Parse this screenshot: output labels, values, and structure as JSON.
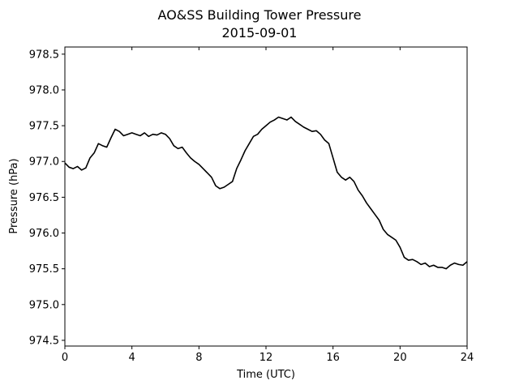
{
  "chart_data": {
    "type": "line",
    "title": "AO&SS Building Tower Pressure",
    "subtitle": "2015-09-01",
    "xlabel": "Time (UTC)",
    "ylabel": "Pressure (hPa)",
    "xlim": [
      0,
      24
    ],
    "ylim": [
      974.42,
      978.6
    ],
    "xticks": [
      0,
      4,
      8,
      12,
      16,
      20,
      24
    ],
    "yticks": [
      974.5,
      975.0,
      975.5,
      976.0,
      976.5,
      977.0,
      977.5,
      978.0,
      978.5
    ],
    "grid": false,
    "series": [
      {
        "color": "#000000",
        "x": [
          0,
          0.25,
          0.5,
          0.75,
          1.0,
          1.25,
          1.5,
          1.75,
          2.0,
          2.25,
          2.5,
          2.75,
          3.0,
          3.25,
          3.5,
          3.75,
          4.0,
          4.25,
          4.5,
          4.75,
          5.0,
          5.25,
          5.5,
          5.75,
          6.0,
          6.25,
          6.5,
          6.75,
          7.0,
          7.25,
          7.5,
          7.75,
          8.0,
          8.25,
          8.5,
          8.75,
          9.0,
          9.25,
          9.5,
          9.75,
          10.0,
          10.25,
          10.5,
          10.75,
          11.0,
          11.25,
          11.5,
          11.75,
          12.0,
          12.25,
          12.5,
          12.75,
          13.0,
          13.25,
          13.5,
          13.75,
          14.0,
          14.25,
          14.5,
          14.75,
          15.0,
          15.25,
          15.5,
          15.75,
          16.0,
          16.25,
          16.5,
          16.75,
          17.0,
          17.25,
          17.5,
          17.75,
          18.0,
          18.25,
          18.5,
          18.75,
          19.0,
          19.25,
          19.5,
          19.75,
          20.0,
          20.25,
          20.5,
          20.75,
          21.0,
          21.25,
          21.5,
          21.75,
          22.0,
          22.25,
          22.5,
          22.75,
          23.0,
          23.25,
          23.5,
          23.75,
          24.0
        ],
        "y": [
          976.98,
          976.92,
          976.9,
          976.93,
          976.88,
          976.91,
          977.05,
          977.12,
          977.25,
          977.22,
          977.2,
          977.33,
          977.45,
          977.42,
          977.36,
          977.38,
          977.4,
          977.38,
          977.36,
          977.4,
          977.35,
          977.38,
          977.37,
          977.4,
          977.38,
          977.32,
          977.22,
          977.18,
          977.2,
          977.12,
          977.05,
          977.0,
          976.96,
          976.9,
          976.84,
          976.78,
          976.66,
          976.62,
          976.64,
          976.68,
          976.72,
          976.9,
          977.02,
          977.15,
          977.25,
          977.35,
          977.38,
          977.45,
          977.5,
          977.55,
          977.58,
          977.62,
          977.6,
          977.58,
          977.62,
          977.56,
          977.52,
          977.48,
          977.45,
          977.42,
          977.43,
          977.38,
          977.3,
          977.25,
          977.05,
          976.85,
          976.78,
          976.74,
          976.78,
          976.72,
          976.6,
          976.52,
          976.42,
          976.34,
          976.26,
          976.18,
          976.05,
          975.98,
          975.94,
          975.9,
          975.8,
          975.66,
          975.62,
          975.63,
          975.6,
          975.56,
          975.58,
          975.53,
          975.55,
          975.52,
          975.52,
          975.5,
          975.55,
          975.58,
          975.56,
          975.55,
          975.6
        ]
      }
    ]
  }
}
